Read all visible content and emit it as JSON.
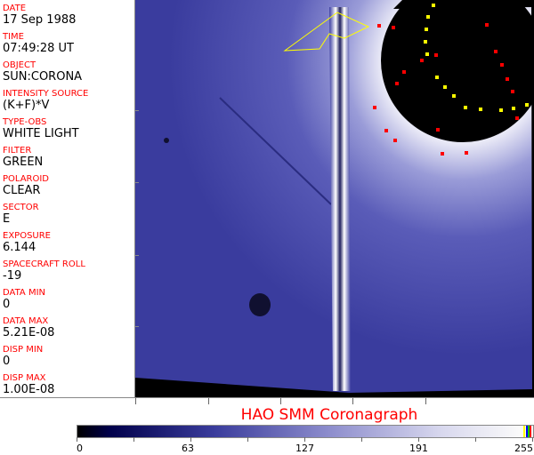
{
  "fields": [
    {
      "label": "DATE",
      "value": "17 Sep 1988"
    },
    {
      "label": "TIME",
      "value": "07:49:28 UT"
    },
    {
      "label": "OBJECT",
      "value": "SUN:CORONA"
    },
    {
      "label": "INTENSITY SOURCE",
      "value": "(K+F)*V"
    },
    {
      "label": "TYPE-OBS",
      "value": "WHITE LIGHT"
    },
    {
      "label": "FILTER",
      "value": "GREEN"
    },
    {
      "label": "POLAROID",
      "value": "CLEAR"
    },
    {
      "label": "SECTOR",
      "value": "E"
    },
    {
      "label": "EXPOSURE",
      "value": "6.144"
    },
    {
      "label": "SPACECRAFT ROLL",
      "value": "-19"
    },
    {
      "label": "DATA MIN",
      "value": "0"
    },
    {
      "label": "DATA MAX",
      "value": "5.21E-08"
    },
    {
      "label": "DISP MIN",
      "value": "0"
    },
    {
      "label": "DISP MAX",
      "value": "1.00E-08"
    }
  ],
  "title": "HAO  SMM Coronagraph",
  "colorbar": {
    "ticks": [
      "0",
      "63",
      "127",
      "191",
      "255"
    ],
    "end_colors": [
      "#ffff00",
      "#0000ff",
      "#00c000",
      "#ff0000"
    ]
  },
  "colors": {
    "label": "#ff0000",
    "image_blue": "#3a3ca0",
    "occulter": "#000000"
  }
}
